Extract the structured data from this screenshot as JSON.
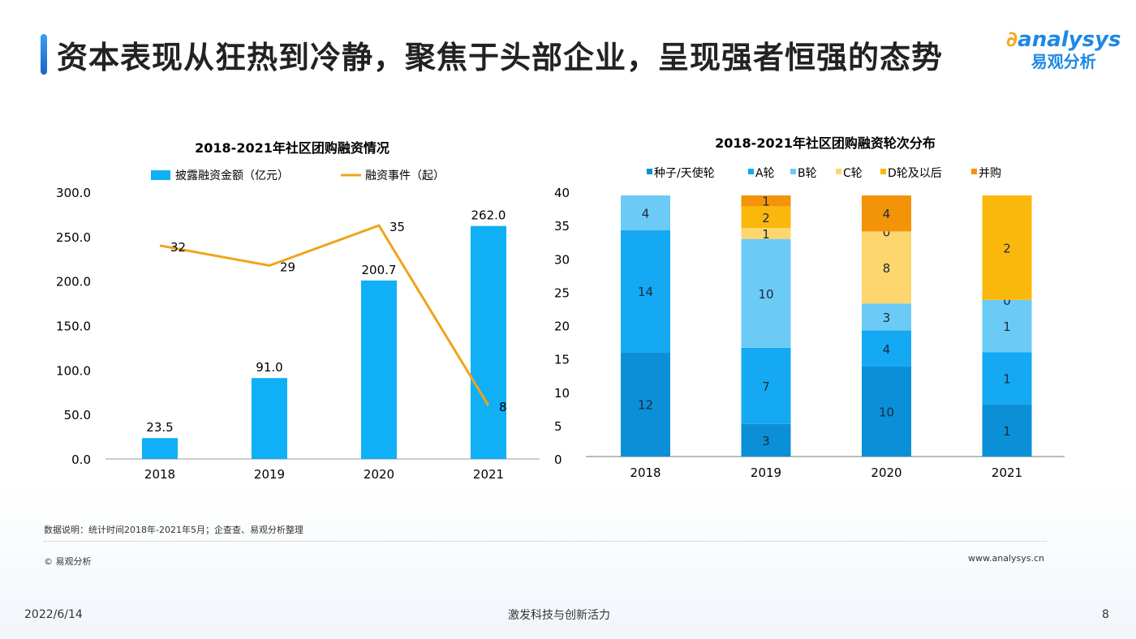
{
  "header": {
    "title": "资本表现从狂热到冷静，聚焦于头部企业，呈现强者恒强的态势",
    "logo_en": "analysys",
    "logo_cn": "易观分析"
  },
  "chart_data": [
    {
      "type": "bar+line",
      "title": "2018-2021年社区团购融资情况",
      "categories": [
        "2018",
        "2019",
        "2020",
        "2021"
      ],
      "series": [
        {
          "name": "披露融资金额（亿元）",
          "type": "bar",
          "axis": "left",
          "color": "#0fb0f5",
          "values": [
            23.5,
            91.0,
            200.7,
            262.0
          ]
        },
        {
          "name": "融资事件（起）",
          "type": "line",
          "axis": "right",
          "color": "#f0a31c",
          "values": [
            32,
            29,
            35,
            8
          ]
        }
      ],
      "y_left": {
        "range": [
          0,
          300
        ],
        "ticks": [
          "0.0",
          "50.0",
          "100.0",
          "150.0",
          "200.0",
          "250.0",
          "300.0"
        ]
      },
      "y_right": {
        "range": [
          0,
          40
        ],
        "ticks": [
          "0",
          "5",
          "10",
          "15",
          "20",
          "25",
          "30",
          "35",
          "40"
        ]
      },
      "legend": "top",
      "grid": false
    },
    {
      "type": "stacked_bar_100",
      "title": "2018-2021年社区团购融资轮次分布",
      "categories": [
        "2018",
        "2019",
        "2020",
        "2021"
      ],
      "series": [
        {
          "name": "种子/天使轮",
          "color": "#0b90d8",
          "values": [
            12,
            3,
            10,
            1
          ]
        },
        {
          "name": "A轮",
          "color": "#14a9f2",
          "values": [
            14,
            7,
            4,
            1
          ]
        },
        {
          "name": "B轮",
          "color": "#6ccaf6",
          "values": [
            4,
            10,
            3,
            1
          ]
        },
        {
          "name": "C轮",
          "color": "#fdd66e",
          "values": [
            0,
            1,
            8,
            0
          ]
        },
        {
          "name": "D轮及以后",
          "color": "#fbb80c",
          "values": [
            0,
            2,
            0,
            2
          ]
        },
        {
          "name": "并购",
          "color": "#f39408",
          "values": [
            0,
            1,
            4,
            0
          ]
        }
      ],
      "legend": "top",
      "grid": false
    }
  ],
  "footer": {
    "note": "数据说明：统计时间2018年-2021年5月；企查查、易观分析整理",
    "copyright": "© 易观分析",
    "url": "www.analysys.cn",
    "date": "2022/6/14",
    "slogan": "激发科技与创新活力",
    "page": "8"
  }
}
